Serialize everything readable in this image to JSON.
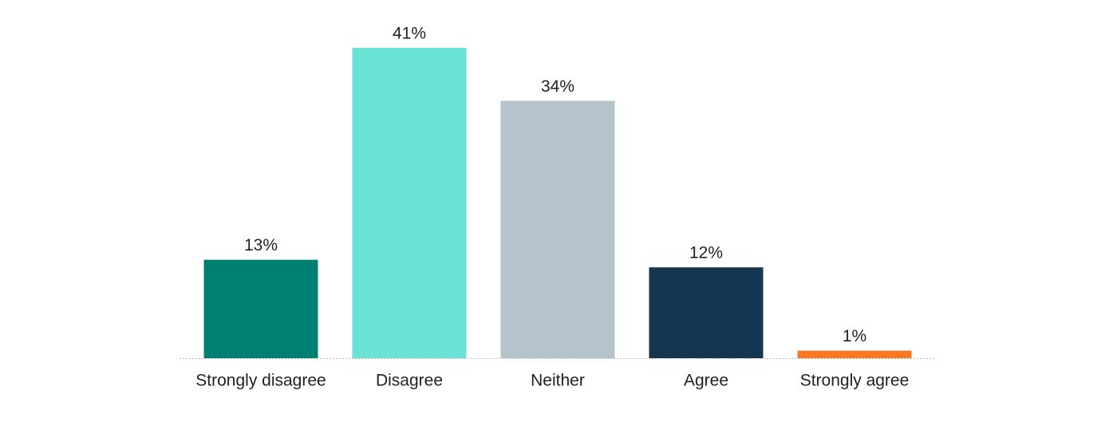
{
  "chart_data": {
    "type": "bar",
    "categories": [
      "Strongly disagree",
      "Disagree",
      "Neither",
      "Agree",
      "Strongly agree"
    ],
    "values": [
      13,
      41,
      34,
      12,
      1
    ],
    "value_labels": [
      "13%",
      "41%",
      "34%",
      "12%",
      "1%"
    ],
    "colors": [
      "#008073",
      "#69e3d6",
      "#b5c3cb",
      "#14374f",
      "#fa7822"
    ]
  }
}
